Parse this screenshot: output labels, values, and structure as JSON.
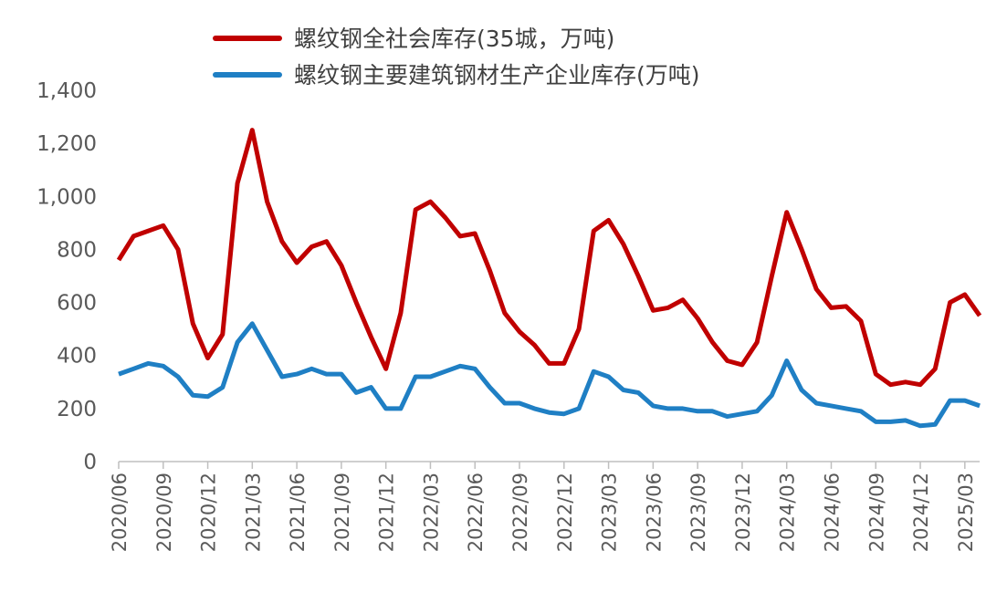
{
  "chart_data": {
    "type": "line",
    "categories": [
      "2020/06",
      null,
      null,
      "2020/09",
      null,
      null,
      "2020/12",
      null,
      null,
      "2021/03",
      null,
      null,
      "2021/06",
      null,
      null,
      "2021/09",
      null,
      null,
      "2021/12",
      null,
      null,
      "2022/03",
      null,
      null,
      "2022/06",
      null,
      null,
      "2022/09",
      null,
      null,
      "2022/12",
      null,
      null,
      "2023/03",
      null,
      null,
      "2023/06",
      null,
      null,
      "2023/09",
      null,
      null,
      "2023/12",
      null,
      null,
      "2024/03",
      null,
      null,
      "2024/06",
      null,
      null,
      "2024/09",
      null,
      null,
      "2024/12",
      null,
      null,
      "2025/03",
      null
    ],
    "series": [
      {
        "name": "螺纹钢全社会库存(35城，万吨)",
        "color": "#c00000",
        "values": [
          760,
          850,
          870,
          890,
          800,
          520,
          390,
          480,
          1050,
          1250,
          980,
          830,
          750,
          810,
          830,
          740,
          600,
          470,
          350,
          560,
          950,
          980,
          920,
          850,
          860,
          720,
          560,
          490,
          440,
          370,
          370,
          500,
          870,
          910,
          820,
          700,
          570,
          580,
          610,
          540,
          450,
          380,
          365,
          450,
          700,
          940,
          800,
          650,
          580,
          585,
          530,
          330,
          290,
          300,
          290,
          350,
          600,
          630,
          550
        ]
      },
      {
        "name": "螺纹钢主要建筑钢材生产企业库存(万吨)",
        "color": "#1f7fc4",
        "values": [
          330,
          350,
          370,
          360,
          320,
          250,
          245,
          280,
          450,
          520,
          420,
          320,
          330,
          350,
          330,
          330,
          260,
          280,
          200,
          200,
          320,
          320,
          340,
          360,
          350,
          280,
          220,
          220,
          200,
          185,
          180,
          200,
          340,
          320,
          270,
          260,
          210,
          200,
          200,
          190,
          190,
          170,
          180,
          190,
          250,
          380,
          270,
          220,
          210,
          200,
          190,
          150,
          150,
          155,
          135,
          140,
          230,
          230,
          210
        ]
      }
    ],
    "ylim": [
      0,
      1400
    ],
    "yticks": [
      0,
      200,
      400,
      600,
      800,
      {
        "value": 1000,
        "label": "1,000"
      },
      {
        "value": 1200,
        "label": "1,200"
      },
      {
        "value": 1400,
        "label": "1,400"
      }
    ]
  }
}
